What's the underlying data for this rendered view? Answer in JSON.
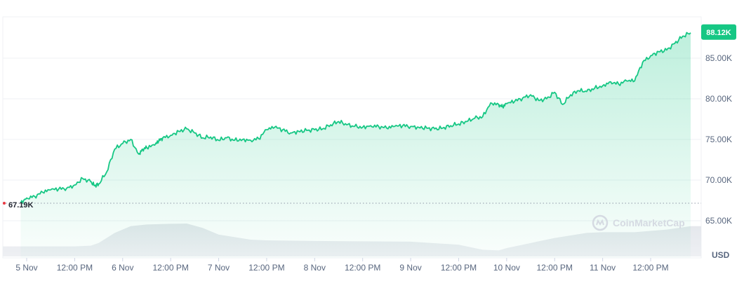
{
  "chart_data": {
    "type": "area",
    "currency_label": "USD",
    "watermark": "CoinMarketCap",
    "last_price_label": "88.12K",
    "open_price_label": "67.19K",
    "colors": {
      "line": "#16c784",
      "badge": "#16c784",
      "open_dot": "#ea3943",
      "volume": "#e6e8ec",
      "grid": "#eff2f5",
      "axis_text": "#58667e"
    },
    "y_axis": {
      "min": 62500,
      "max": 90000,
      "ticks": [
        65000,
        70000,
        75000,
        80000,
        85000
      ],
      "tick_labels": [
        "65.00K",
        "70.00K",
        "75.00K",
        "80.00K",
        "85.00K"
      ]
    },
    "x_axis": {
      "min": 0,
      "max": 166,
      "ticks": [
        0,
        12,
        24,
        36,
        48,
        60,
        72,
        84,
        96,
        108,
        120,
        132,
        144,
        156
      ],
      "tick_labels": [
        "5 Nov",
        "12:00 PM",
        "6 Nov",
        "12:00 PM",
        "7 Nov",
        "12:00 PM",
        "8 Nov",
        "12:00 PM",
        "9 Nov",
        "12:00 PM",
        "10 Nov",
        "12:00 PM",
        "11 Nov",
        "12:00 PM"
      ]
    },
    "price_series": {
      "x": [
        -1.5,
        0,
        2,
        4,
        6,
        8,
        10,
        12,
        14,
        16,
        17,
        18,
        20,
        22,
        24,
        26,
        28,
        29,
        30,
        32,
        33,
        34,
        36,
        38,
        40,
        42,
        44,
        46,
        48,
        50,
        52,
        54,
        56,
        58,
        60,
        62,
        64,
        66,
        68,
        70,
        72,
        74,
        76,
        78,
        80,
        82,
        84,
        86,
        88,
        90,
        92,
        94,
        96,
        98,
        100,
        102,
        104,
        106,
        108,
        110,
        112,
        114,
        116,
        118,
        119,
        120,
        122,
        124,
        126,
        128,
        130,
        132,
        134,
        136,
        138,
        140,
        142,
        144,
        146,
        148,
        150,
        152,
        154,
        156,
        158,
        160,
        162,
        164,
        166
      ],
      "y": [
        67200,
        67800,
        68000,
        68500,
        68800,
        68900,
        69000,
        69400,
        70200,
        69800,
        69300,
        69500,
        71000,
        73800,
        74500,
        75000,
        73200,
        73800,
        74000,
        74300,
        74800,
        75200,
        75500,
        76000,
        76300,
        75800,
        75200,
        75300,
        74900,
        75200,
        74900,
        75000,
        74900,
        75100,
        76200,
        76500,
        76200,
        75800,
        76000,
        76100,
        76200,
        76300,
        76800,
        77200,
        76800,
        76600,
        76500,
        76700,
        76600,
        76400,
        76600,
        76700,
        76600,
        76500,
        76400,
        76300,
        76400,
        76700,
        76900,
        77200,
        77600,
        77800,
        79500,
        79300,
        79000,
        79400,
        79700,
        80100,
        80500,
        79800,
        80000,
        80800,
        79300,
        80500,
        81000,
        80900,
        81300,
        81600,
        82100,
        81800,
        82200,
        82200,
        84500,
        85300,
        85800,
        86000,
        86800,
        87700,
        88120
      ]
    },
    "volume_series": {
      "note_units": "relative",
      "x": [
        0,
        12,
        16,
        18,
        22,
        26,
        30,
        36,
        40,
        44,
        48,
        56,
        60,
        72,
        84,
        96,
        108,
        114,
        118,
        120,
        124,
        132,
        140,
        144,
        152,
        160,
        166
      ],
      "y": [
        0.3,
        0.3,
        0.32,
        0.4,
        0.7,
        0.9,
        0.95,
        0.97,
        0.98,
        0.85,
        0.65,
        0.5,
        0.48,
        0.46,
        0.45,
        0.44,
        0.35,
        0.2,
        0.18,
        0.25,
        0.35,
        0.55,
        0.7,
        0.72,
        0.72,
        0.8,
        0.9
      ]
    }
  }
}
